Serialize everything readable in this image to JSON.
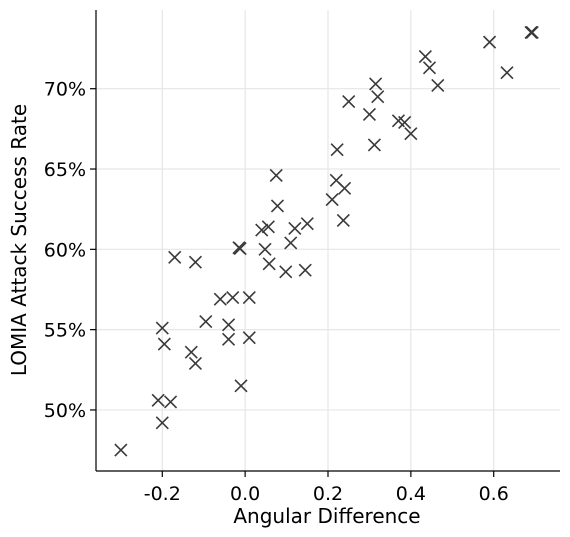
{
  "chart_data": {
    "type": "scatter",
    "xlabel": "Angular Difference",
    "ylabel": "LOMIA Attack Success Rate",
    "xlim": [
      -0.36,
      0.76
    ],
    "ylim": [
      46.2,
      74.9
    ],
    "x_ticks": [
      -0.2,
      0.0,
      0.2,
      0.4,
      0.6
    ],
    "x_tick_labels": [
      "-0.2",
      "0.0",
      "0.2",
      "0.4",
      "0.6"
    ],
    "y_ticks": [
      50,
      55,
      60,
      65,
      70
    ],
    "y_tick_labels": [
      "50%",
      "55%",
      "60%",
      "65%",
      "70%"
    ],
    "grid": true,
    "marker": "x",
    "marker_color": "#3a3a3a",
    "series": [
      {
        "points": [
          [
            -0.3,
            47.5
          ],
          [
            -0.21,
            50.6
          ],
          [
            -0.2,
            49.2
          ],
          [
            -0.18,
            50.5
          ],
          [
            -0.2,
            55.1
          ],
          [
            -0.195,
            54.1
          ],
          [
            -0.17,
            59.5
          ],
          [
            -0.13,
            53.6
          ],
          [
            -0.12,
            52.9
          ],
          [
            -0.12,
            59.2
          ],
          [
            -0.095,
            55.5
          ],
          [
            -0.06,
            56.9
          ],
          [
            -0.04,
            55.3
          ],
          [
            -0.04,
            54.4
          ],
          [
            -0.03,
            57.0
          ],
          [
            -0.015,
            60.1
          ],
          [
            -0.012,
            60.05
          ],
          [
            -0.01,
            51.5
          ],
          [
            0.01,
            54.5
          ],
          [
            0.01,
            57.0
          ],
          [
            0.04,
            61.2
          ],
          [
            0.048,
            60.0
          ],
          [
            0.056,
            61.4
          ],
          [
            0.058,
            59.1
          ],
          [
            0.075,
            64.6
          ],
          [
            0.078,
            62.7
          ],
          [
            0.098,
            58.6
          ],
          [
            0.11,
            60.4
          ],
          [
            0.12,
            61.3
          ],
          [
            0.145,
            58.7
          ],
          [
            0.15,
            61.6
          ],
          [
            0.21,
            63.1
          ],
          [
            0.22,
            64.3
          ],
          [
            0.222,
            66.2
          ],
          [
            0.237,
            61.8
          ],
          [
            0.24,
            63.8
          ],
          [
            0.25,
            69.2
          ],
          [
            0.3,
            68.4
          ],
          [
            0.312,
            66.5
          ],
          [
            0.315,
            70.3
          ],
          [
            0.32,
            69.5
          ],
          [
            0.37,
            68.0
          ],
          [
            0.385,
            67.9
          ],
          [
            0.4,
            67.2
          ],
          [
            0.435,
            72.0
          ],
          [
            0.445,
            71.3
          ],
          [
            0.465,
            70.2
          ],
          [
            0.59,
            72.9
          ],
          [
            0.632,
            71.0
          ],
          [
            0.69,
            73.5
          ],
          [
            0.693,
            73.5
          ]
        ]
      }
    ]
  }
}
